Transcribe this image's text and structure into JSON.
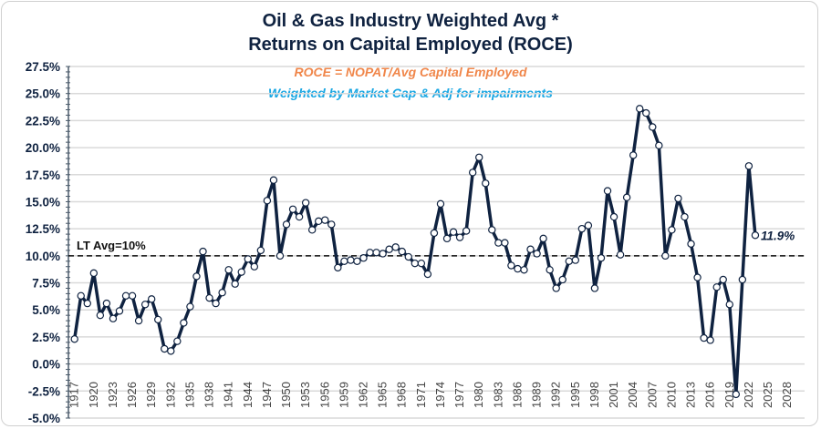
{
  "chart_data": {
    "type": "line",
    "title": [
      "Oil & Gas Industry Weighted Avg *",
      "Returns on Capital Employed (ROCE)"
    ],
    "subtitle": [
      "ROCE = NOPAT/Avg Capital Employed",
      "Weighted by Market Cap & Adj for impairments"
    ],
    "xlabel": "",
    "ylabel": "",
    "ylim": [
      -5,
      27.5
    ],
    "xlim": [
      1917,
      2029
    ],
    "grid": true,
    "yticks": [
      "27.5%",
      "25.0%",
      "22.5%",
      "20.0%",
      "17.5%",
      "15.0%",
      "12.5%",
      "10.0%",
      "7.5%",
      "5.0%",
      "2.5%",
      "0.0%",
      "-2.5%",
      "-5.0%"
    ],
    "ytick_values": [
      27.5,
      25,
      22.5,
      20,
      17.5,
      15,
      12.5,
      10,
      7.5,
      5,
      2.5,
      0,
      -2.5,
      -5
    ],
    "xticks": [
      1917,
      1920,
      1923,
      1926,
      1929,
      1932,
      1935,
      1938,
      1941,
      1944,
      1947,
      1950,
      1953,
      1956,
      1959,
      1962,
      1965,
      1968,
      1971,
      1974,
      1977,
      1980,
      1983,
      1986,
      1989,
      1992,
      1995,
      1998,
      2001,
      2004,
      2007,
      2010,
      2013,
      2016,
      2019,
      2022,
      2025,
      2028
    ],
    "reference_line": {
      "value": 10,
      "label": "LT Avg=10%"
    },
    "last_label": "11.9%",
    "series": [
      {
        "name": "ROCE",
        "color": "#0f2240",
        "x_start": 1917,
        "values": [
          2.3,
          6.3,
          5.6,
          8.4,
          4.5,
          5.6,
          4.2,
          4.9,
          6.3,
          6.3,
          4.0,
          5.5,
          6.0,
          4.1,
          1.4,
          1.2,
          2.1,
          3.8,
          5.3,
          8.1,
          10.4,
          6.1,
          5.6,
          6.6,
          8.7,
          7.4,
          8.5,
          9.7,
          9.0,
          10.5,
          15.1,
          17.0,
          10.0,
          12.9,
          14.3,
          13.6,
          14.9,
          12.4,
          13.2,
          13.3,
          12.9,
          8.9,
          9.5,
          9.6,
          9.5,
          9.8,
          10.3,
          10.3,
          10.2,
          10.6,
          10.8,
          10.4,
          9.9,
          9.3,
          9.3,
          8.3,
          12.1,
          14.8,
          11.6,
          12.2,
          11.7,
          12.3,
          17.7,
          19.1,
          16.7,
          12.4,
          11.2,
          11.2,
          9.1,
          8.8,
          8.7,
          10.6,
          10.2,
          11.6,
          8.7,
          7.0,
          7.8,
          9.5,
          9.6,
          12.5,
          12.8,
          7.0,
          9.8,
          16.0,
          13.6,
          10.1,
          15.4,
          19.3,
          23.6,
          23.2,
          21.9,
          20.2,
          10.0,
          12.4,
          15.3,
          13.6,
          11.1,
          8.0,
          2.4,
          2.2,
          7.1,
          7.8,
          5.5,
          -2.8,
          7.8,
          18.3,
          11.9
        ]
      }
    ]
  }
}
